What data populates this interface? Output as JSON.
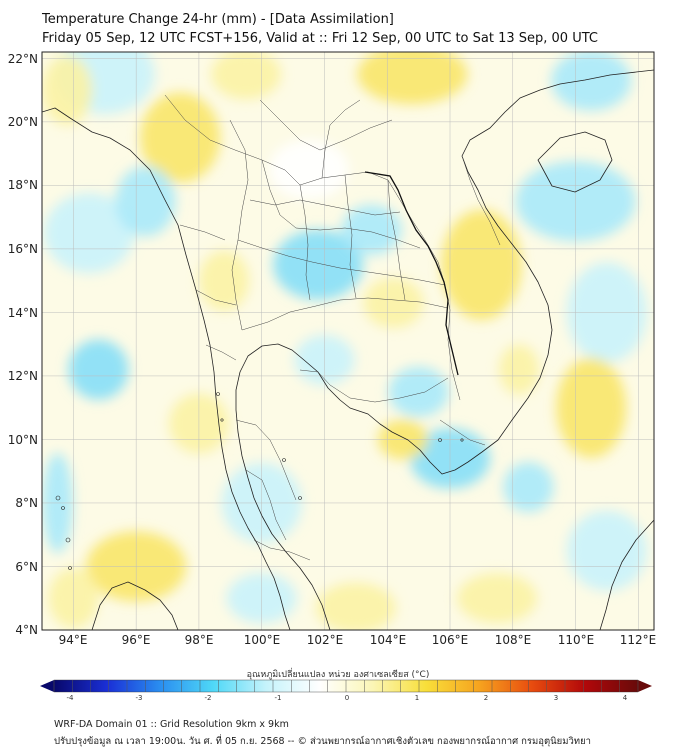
{
  "header": {
    "title": "Temperature Change 24-hr (mm) - [Data Assimilation]",
    "subtitle": "Friday 05 Sep, 12 UTC FCST+156, Valid at :: Fri 12 Sep, 00 UTC to Sat 13 Sep, 00 UTC"
  },
  "map": {
    "lat_labels": [
      "22°N",
      "20°N",
      "18°N",
      "16°N",
      "14°N",
      "12°N",
      "10°N",
      "8°N",
      "6°N",
      "4°N"
    ],
    "lon_labels": [
      "94°E",
      "96°E",
      "98°E",
      "100°E",
      "102°E",
      "104°E",
      "106°E",
      "108°E",
      "110°E",
      "112°E"
    ],
    "lat_range": [
      4,
      22.2
    ],
    "lon_range": [
      93,
      112.5
    ]
  },
  "colorbar": {
    "label": "อุณหภูมิเปลี่ยนแปลง หน่วย องศาเซลเซียส (°C)",
    "ticks": [
      "-4",
      "-3",
      "-2",
      "-1",
      "0",
      "1",
      "2",
      "3",
      "4"
    ],
    "range": [
      -4,
      4
    ],
    "colors": [
      "#08086b",
      "#1a2fd6",
      "#2a8ef0",
      "#4fd8f7",
      "#c6f3fb",
      "#ffffff",
      "#fbf6b6",
      "#f8df3a",
      "#f6a41f",
      "#e84c0f",
      "#b2080a",
      "#680a0a"
    ]
  },
  "footer": {
    "line1": "WRF-DA Domain 01 :: Grid Resolution 9km x 9km",
    "line2": "ปรับปรุงข้อมูล ณ เวลา 19:00น. วัน ศ. ที่ 05 ก.ย. 2568 -- © ส่วนพยากรณ์อากาศเชิงตัวเลข กองพยากรณ์อากาศ กรมอุตุนิยมวิทยา"
  }
}
